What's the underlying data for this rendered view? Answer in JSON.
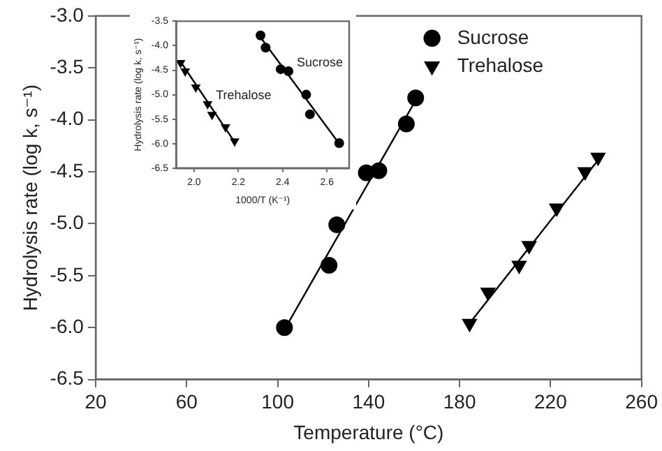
{
  "chart_data": [
    {
      "type": "scatter",
      "xlabel": "Temperature (°C)",
      "ylabel": "Hydrolysis rate (log k, s⁻¹)",
      "xlim": [
        20,
        260
      ],
      "xticks": [
        20,
        60,
        100,
        140,
        180,
        220,
        260
      ],
      "ylim": [
        -6.5,
        -3
      ],
      "yticks": [
        {
          "value": -6.5,
          "label": "-6.5"
        },
        {
          "value": -6,
          "label": "-6.0"
        },
        {
          "value": -5.5,
          "label": "-5.5"
        },
        {
          "value": -5,
          "label": "-5.0"
        },
        {
          "value": -4.5,
          "label": "-4.5"
        },
        {
          "value": -4,
          "label": "-4.0"
        },
        {
          "value": -3.5,
          "label": "-3.5"
        },
        {
          "value": -3,
          "label": "-3.0"
        }
      ],
      "grid": false,
      "legend": "top right",
      "series": [
        {
          "name": "Sucrose",
          "type": "scatter",
          "marker": "circle",
          "color": "#000000",
          "x": [
            103,
            122.6,
            126,
            139,
            144.5,
            156.6,
            160.7
          ],
          "values": [
            -6.0,
            -5.4,
            -5.01,
            -4.51,
            -4.49,
            -4.04,
            -3.79
          ]
        },
        {
          "name": "Trehalose",
          "type": "scatter",
          "marker": "triangle",
          "color": "#000000",
          "x": [
            184.4,
            192.5,
            206.2,
            210.6,
            222.7,
            235.2,
            240.9
          ],
          "values": [
            -5.96,
            -5.66,
            -5.4,
            -5.21,
            -4.85,
            -4.5,
            -4.36
          ]
        },
        {
          "type": "line",
          "marker": "none",
          "color": "#000000",
          "x": [
            103,
            161
          ],
          "values": [
            -6.02,
            -3.8
          ]
        },
        {
          "type": "line",
          "marker": "none",
          "color": "#000000",
          "x": [
            184,
            243
          ],
          "values": [
            -5.97,
            -4.33
          ]
        }
      ]
    },
    {
      "type": "scatter",
      "xlabel": "1000/T (K⁻¹)",
      "ylabel": "Hydrolysis rate (log k, s⁻¹)",
      "xlim": [
        1.92,
        2.7
      ],
      "xticks": [
        {
          "value": 2,
          "label": "2.0"
        },
        {
          "value": 2.2,
          "label": "2.2"
        },
        {
          "value": 2.4,
          "label": "2.4"
        },
        {
          "value": 2.6,
          "label": "2.6"
        }
      ],
      "ylim": [
        -6.5,
        -3.5
      ],
      "yticks": [
        {
          "value": -6.5,
          "label": "-6.5"
        },
        {
          "value": -6,
          "label": "-6.0"
        },
        {
          "value": -5.5,
          "label": "-5.5"
        },
        {
          "value": -5,
          "label": "-5.0"
        },
        {
          "value": -4.5,
          "label": "-4.5"
        },
        {
          "value": -4,
          "label": "-4.0"
        },
        {
          "value": -3.5,
          "label": "-3.5"
        }
      ],
      "grid": false,
      "legend": false,
      "series": [
        {
          "name": "Trehalose",
          "type": "scatter",
          "marker": "triangle",
          "color": "#000000",
          "x": [
            1.939,
            1.96,
            2.008,
            2.061,
            2.081,
            2.142,
            2.183
          ],
          "values": [
            -4.35,
            -4.52,
            -4.85,
            -5.19,
            -5.41,
            -5.66,
            -5.95
          ]
        },
        {
          "name": "Sucrose",
          "type": "scatter",
          "marker": "circle",
          "color": "#000000",
          "x": [
            2.3,
            2.323,
            2.391,
            2.426,
            2.506,
            2.523,
            2.655
          ],
          "values": [
            -3.79,
            -4.04,
            -4.48,
            -4.52,
            -5.0,
            -5.4,
            -5.99
          ]
        },
        {
          "type": "line",
          "marker": "none",
          "color": "#000000",
          "x": [
            1.935,
            2.185
          ],
          "values": [
            -4.3,
            -5.98
          ]
        },
        {
          "type": "line",
          "marker": "none",
          "color": "#000000",
          "x": [
            2.3,
            2.655
          ],
          "values": [
            -3.83,
            -6.0
          ]
        }
      ]
    }
  ]
}
